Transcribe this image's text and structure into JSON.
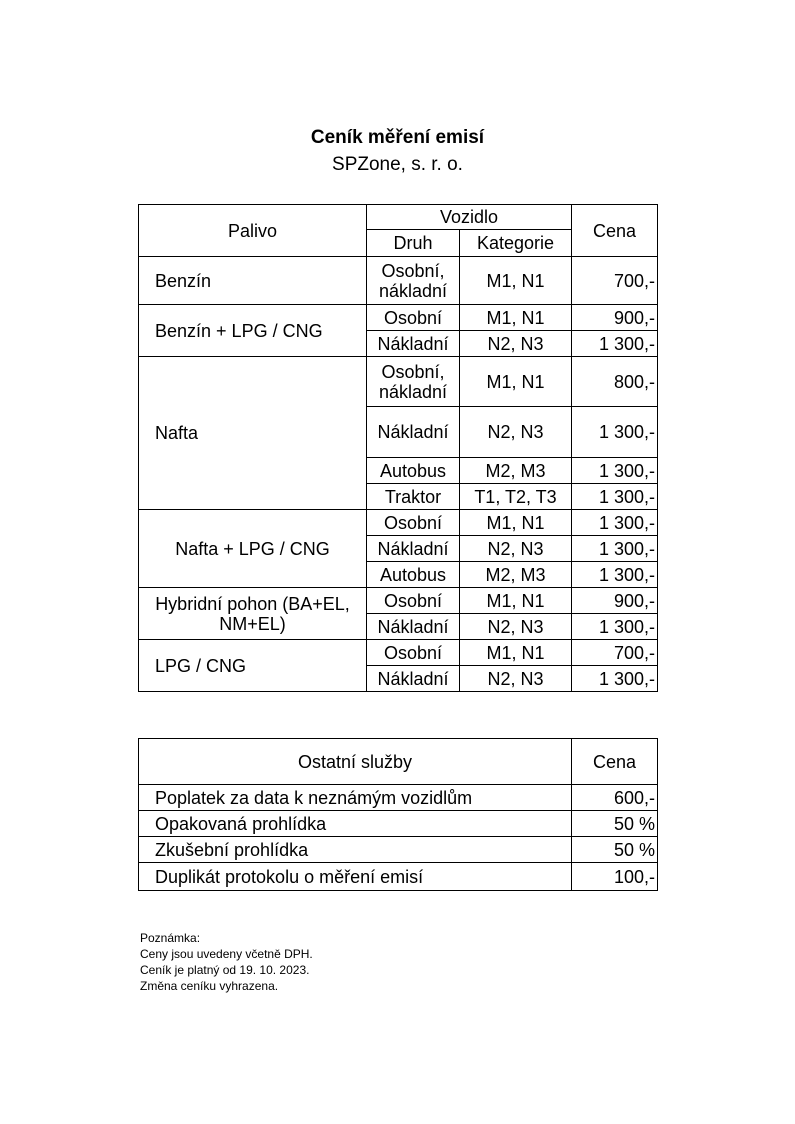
{
  "title": "Ceník měření emisí",
  "subtitle": "SPZone, s. r. o.",
  "main_table": {
    "headers": {
      "fuel": "Palivo",
      "vehicle": "Vozidlo",
      "type": "Druh",
      "category": "Kategorie",
      "price": "Cena"
    },
    "groups": [
      {
        "fuel": "Benzín",
        "rows": [
          {
            "type": "Osobní, nákladní",
            "category": "M1, N1",
            "price": "700,-"
          }
        ]
      },
      {
        "fuel": "Benzín + LPG / CNG",
        "rows": [
          {
            "type": "Osobní",
            "category": "M1, N1",
            "price": "900,-"
          },
          {
            "type": "Nákladní",
            "category": "N2, N3",
            "price": "1 300,-"
          }
        ]
      },
      {
        "fuel": "Nafta",
        "rows": [
          {
            "type": "Osobní, nákladní",
            "category": "M1, N1",
            "price": "800,-"
          },
          {
            "type": "Nákladní",
            "category": "N2, N3",
            "price": "1 300,-"
          },
          {
            "type": "Autobus",
            "category": "M2, M3",
            "price": "1 300,-"
          },
          {
            "type": "Traktor",
            "category": "T1, T2, T3",
            "price": "1 300,-"
          }
        ]
      },
      {
        "fuel": "Nafta + LPG / CNG",
        "rows": [
          {
            "type": "Osobní",
            "category": "M1, N1",
            "price": "1 300,-"
          },
          {
            "type": "Nákladní",
            "category": "N2, N3",
            "price": "1 300,-"
          },
          {
            "type": "Autobus",
            "category": "M2, M3",
            "price": "1 300,-"
          }
        ]
      },
      {
        "fuel": "Hybridní pohon (BA+EL, NM+EL)",
        "rows": [
          {
            "type": "Osobní",
            "category": "M1, N1",
            "price": "900,-"
          },
          {
            "type": "Nákladní",
            "category": "N2, N3",
            "price": "1 300,-"
          }
        ]
      },
      {
        "fuel": "LPG / CNG",
        "rows": [
          {
            "type": "Osobní",
            "category": "M1, N1",
            "price": "700,-"
          },
          {
            "type": "Nákladní",
            "category": "N2, N3",
            "price": "1 300,-"
          }
        ]
      }
    ]
  },
  "services_table": {
    "headers": {
      "service": "Ostatní služby",
      "price": "Cena"
    },
    "rows": [
      {
        "service": "Poplatek za data k neznámým vozidlům",
        "price": "600,-"
      },
      {
        "service": "Opakovaná prohlídka",
        "price": "50 %"
      },
      {
        "service": "Zkušební prohlídka",
        "price": "50 %"
      },
      {
        "service": "Duplikát protokolu o měření emisí",
        "price": "100,-"
      }
    ]
  },
  "note": {
    "label": "Poznámka:",
    "lines": [
      "Ceny jsou uvedeny včetně DPH.",
      "Ceník je platný od 19. 10. 2023.",
      "Změna ceníku vyhrazena."
    ]
  }
}
